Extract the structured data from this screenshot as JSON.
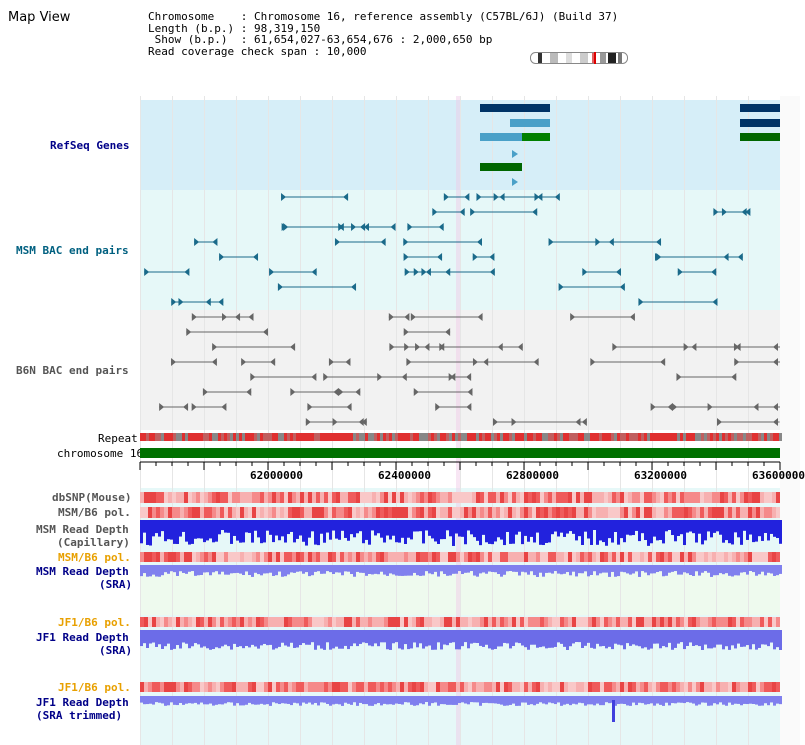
{
  "header": {
    "title": "Map View",
    "info_lines": [
      "Chromosome    : Chromosome 16, reference assembly (C57BL/6J) (Build 37)",
      "Length (b.p.) : 98,319,150",
      " Show (b.p.)  : 61,654,027-63,654,676 : 2,000,650 bp",
      "Read coverage check span : 10,000"
    ]
  },
  "tracks": {
    "refseq": "RefSeq Genes",
    "msm_bac": "MSM BAC end pairs",
    "b6n_bac": "B6N BAC end pairs",
    "repeat": "Repeat",
    "chromosome": "chromosome 16",
    "dbsnp": "dbSNP(Mouse)",
    "msm_b6_pol1": "MSM/B6 pol.",
    "msm_depth_cap_1": "MSM Read Depth",
    "msm_depth_cap_2": "(Capillary)",
    "msm_b6_pol2": "MSM/B6 pol.",
    "msm_depth_sra_1": "MSM Read Depth",
    "msm_depth_sra_2": "(SRA)",
    "jf1_b6_pol1": "JF1/B6 pol.",
    "jf1_depth_sra_1": "JF1 Read Depth",
    "jf1_depth_sra_2": "(SRA)",
    "jf1_b6_pol2": "JF1/B6 pol.",
    "jf1_depth_trim_1": "JF1 Read Depth",
    "jf1_depth_trim_2": "(SRA trimmed)"
  },
  "scale": {
    "ticks": [
      "62000000",
      "62400000",
      "62800000",
      "63200000",
      "63600000"
    ]
  },
  "colors": {
    "refseq_bg": "#d6eef8",
    "msm_bg": "#e6f8f8",
    "b6n_bg": "#f2f2f2",
    "chrom": "#007000",
    "snp": "#ef5b5b",
    "depth_blue": "#2222dd",
    "depth_light": "#7f7fee",
    "orange_label": "#e8a000",
    "navy_label": "#000088"
  }
}
